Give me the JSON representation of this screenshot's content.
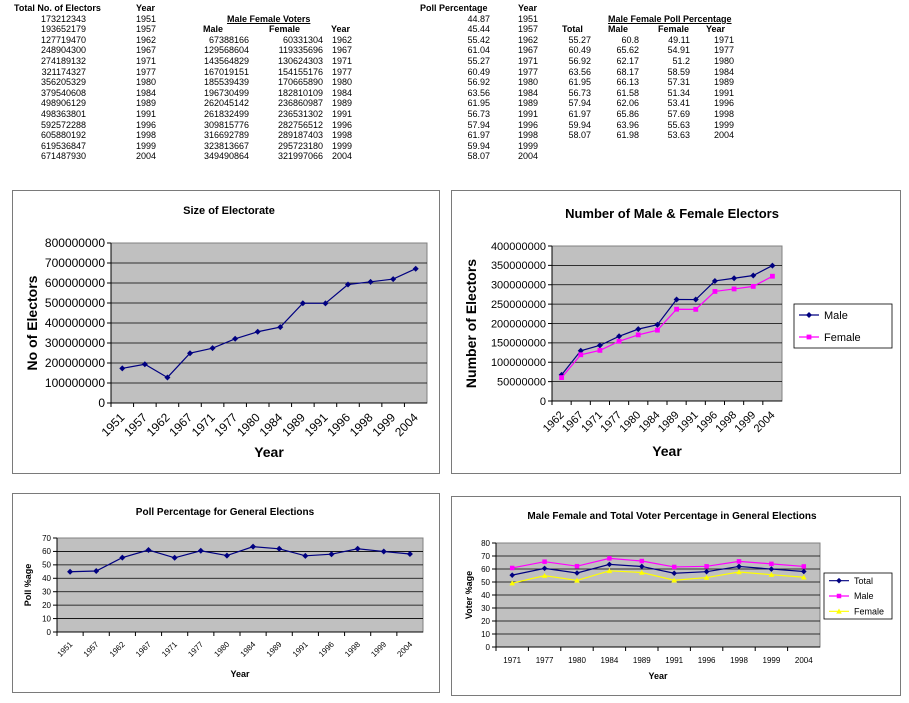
{
  "tables": {
    "electors": {
      "headers": [
        "Total No. of Electors",
        "Year"
      ],
      "rows": [
        [
          "173212343",
          "1951"
        ],
        [
          "193652179",
          "1957"
        ],
        [
          "127719470",
          "1962"
        ],
        [
          "248904300",
          "1967"
        ],
        [
          "274189132",
          "1971"
        ],
        [
          "321174327",
          "1977"
        ],
        [
          "356205329",
          "1980"
        ],
        [
          "379540608",
          "1984"
        ],
        [
          "498906129",
          "1989"
        ],
        [
          "498363801",
          "1991"
        ],
        [
          "592572288",
          "1996"
        ],
        [
          "605880192",
          "1998"
        ],
        [
          "619536847",
          "1999"
        ],
        [
          "671487930",
          "2004"
        ]
      ]
    },
    "voters": {
      "title": "Male Female Voters",
      "headers": [
        "Male",
        "Female",
        "Year"
      ],
      "rows": [
        [
          "67388166",
          "60331304",
          "1962"
        ],
        [
          "129568604",
          "119335696",
          "1967"
        ],
        [
          "143564829",
          "130624303",
          "1971"
        ],
        [
          "167019151",
          "154155176",
          "1977"
        ],
        [
          "185539439",
          "170665890",
          "1980"
        ],
        [
          "196730499",
          "182810109",
          "1984"
        ],
        [
          "262045142",
          "236860987",
          "1989"
        ],
        [
          "261832499",
          "236531302",
          "1991"
        ],
        [
          "309815776",
          "282756512",
          "1996"
        ],
        [
          "316692789",
          "289187403",
          "1998"
        ],
        [
          "323813667",
          "295723180",
          "1999"
        ],
        [
          "349490864",
          "321997066",
          "2004"
        ]
      ]
    },
    "poll": {
      "headers": [
        "Poll Percentage",
        "Year"
      ],
      "rows": [
        [
          "44.87",
          "1951"
        ],
        [
          "45.44",
          "1957"
        ],
        [
          "55.42",
          "1962"
        ],
        [
          "61.04",
          "1967"
        ],
        [
          "55.27",
          "1971"
        ],
        [
          "60.49",
          "1977"
        ],
        [
          "56.92",
          "1980"
        ],
        [
          "63.56",
          "1984"
        ],
        [
          "61.95",
          "1989"
        ],
        [
          "56.73",
          "1991"
        ],
        [
          "57.94",
          "1996"
        ],
        [
          "61.97",
          "1998"
        ],
        [
          "59.94",
          "1999"
        ],
        [
          "58.07",
          "2004"
        ]
      ]
    },
    "mfpoll": {
      "title": "Male Female Poll Percentage",
      "headers": [
        "Total",
        "Male",
        "Female",
        "Year"
      ],
      "rows": [
        [
          "55.27",
          "60.8",
          "49.11",
          "1971"
        ],
        [
          "60.49",
          "65.62",
          "54.91",
          "1977"
        ],
        [
          "56.92",
          "62.17",
          "51.2",
          "1980"
        ],
        [
          "63.56",
          "68.17",
          "58.59",
          "1984"
        ],
        [
          "61.95",
          "66.13",
          "57.31",
          "1989"
        ],
        [
          "56.73",
          "61.58",
          "51.34",
          "1991"
        ],
        [
          "57.94",
          "62.06",
          "53.41",
          "1996"
        ],
        [
          "61.97",
          "65.86",
          "57.69",
          "1998"
        ],
        [
          "59.94",
          "63.96",
          "55.63",
          "1999"
        ],
        [
          "58.07",
          "61.98",
          "53.63",
          "2004"
        ]
      ]
    }
  },
  "chart_data": [
    {
      "id": "electorate",
      "type": "line",
      "title": "Size of Electorate",
      "xlabel": "Year",
      "ylabel": "No of Electors",
      "categories": [
        "1951",
        "1957",
        "1962",
        "1967",
        "1971",
        "1977",
        "1980",
        "1984",
        "1989",
        "1991",
        "1996",
        "1998",
        "1999",
        "2004"
      ],
      "series": [
        {
          "values": [
            173212343,
            193652179,
            127719470,
            248904300,
            274189132,
            321174327,
            356205329,
            379540608,
            498906129,
            498363801,
            592572288,
            605880192,
            619536847,
            671487930
          ],
          "color": "#000080",
          "marker": "diamond"
        }
      ],
      "ylim": [
        0,
        800000000
      ],
      "yticks": [
        "0",
        "100000000",
        "200000000",
        "300000000",
        "400000000",
        "500000000",
        "600000000",
        "700000000",
        "800000000"
      ],
      "grid": true,
      "plot_bg": "#c0c0c0"
    },
    {
      "id": "mf_electors",
      "type": "line",
      "title": "Number of Male & Female Electors",
      "xlabel": "Year",
      "ylabel": "Number of Electors",
      "categories": [
        "1962",
        "1967",
        "1971",
        "1977",
        "1980",
        "1984",
        "1989",
        "1991",
        "1996",
        "1998",
        "1999",
        "2004"
      ],
      "series": [
        {
          "name": "Male",
          "values": [
            67388166,
            129568604,
            143564829,
            167019151,
            185539439,
            196730499,
            262045142,
            261832499,
            309815776,
            316692789,
            323813667,
            349490864
          ],
          "color": "#000080",
          "marker": "diamond"
        },
        {
          "name": "Female",
          "values": [
            60331304,
            119335696,
            130624303,
            154155176,
            170665890,
            182810109,
            236860987,
            236531302,
            282756512,
            289187403,
            295723180,
            321997066
          ],
          "color": "#ff00ff",
          "marker": "square"
        }
      ],
      "ylim": [
        0,
        400000000
      ],
      "yticks": [
        "0",
        "50000000",
        "100000000",
        "150000000",
        "200000000",
        "250000000",
        "300000000",
        "350000000",
        "400000000"
      ],
      "grid": true,
      "legend": "right",
      "plot_bg": "#c0c0c0"
    },
    {
      "id": "poll",
      "type": "line",
      "title": "Poll Percentage for General Elections",
      "xlabel": "Year",
      "ylabel": "Poll %age",
      "categories": [
        "1951",
        "1957",
        "1962",
        "1967",
        "1971",
        "1977",
        "1980",
        "1984",
        "1989",
        "1991",
        "1996",
        "1998",
        "1999",
        "2004"
      ],
      "series": [
        {
          "values": [
            44.87,
            45.44,
            55.42,
            61.04,
            55.27,
            60.49,
            56.92,
            63.56,
            61.95,
            56.73,
            57.94,
            61.97,
            59.94,
            58.07
          ],
          "color": "#000080",
          "marker": "diamond"
        }
      ],
      "ylim": [
        0,
        70
      ],
      "yticks": [
        "0",
        "10",
        "20",
        "30",
        "40",
        "50",
        "60",
        "70"
      ],
      "grid": true,
      "plot_bg": "#c0c0c0"
    },
    {
      "id": "mf_poll",
      "type": "line",
      "title": "Male Female and Total Voter Percentage in General Elections",
      "xlabel": "Year",
      "ylabel": "Voter %age",
      "categories": [
        "1971",
        "1977",
        "1980",
        "1984",
        "1989",
        "1991",
        "1996",
        "1998",
        "1999",
        "2004"
      ],
      "series": [
        {
          "name": "Total",
          "values": [
            55.27,
            60.49,
            56.92,
            63.56,
            61.95,
            56.73,
            57.94,
            61.97,
            59.94,
            58.07
          ],
          "color": "#000080",
          "marker": "diamond"
        },
        {
          "name": "Male",
          "values": [
            60.8,
            65.62,
            62.17,
            68.17,
            66.13,
            61.58,
            62.06,
            65.86,
            63.96,
            61.98
          ],
          "color": "#ff00ff",
          "marker": "square"
        },
        {
          "name": "Female",
          "values": [
            49.11,
            54.91,
            51.2,
            58.59,
            57.31,
            51.34,
            53.41,
            57.69,
            55.63,
            53.63
          ],
          "color": "#ffff00",
          "marker": "triangle"
        }
      ],
      "ylim": [
        0,
        80
      ],
      "yticks": [
        "0",
        "10",
        "20",
        "30",
        "40",
        "50",
        "60",
        "70",
        "80"
      ],
      "grid": true,
      "legend": "right",
      "plot_bg": "#c0c0c0"
    }
  ]
}
